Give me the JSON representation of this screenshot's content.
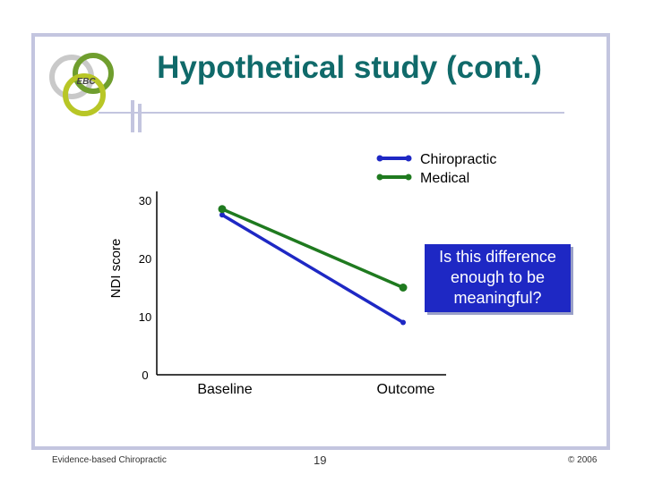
{
  "slide": {
    "title": "Hypothetical study (cont.)",
    "logo_text": "EBC",
    "footer_left": "Evidence-based Chiropractic",
    "page_number": "19",
    "footer_right": "© 2006"
  },
  "callout": {
    "text": "Is this difference enough to be meaningful?"
  },
  "colors": {
    "title": "#106a6a",
    "chiropractic": "#1e28c4",
    "medical": "#1f7a1f",
    "frame": "#c3c5df"
  },
  "chart_data": {
    "type": "line",
    "title": "",
    "xlabel": "",
    "ylabel": "NDI score",
    "categories": [
      "Baseline",
      "Outcome"
    ],
    "ylim": [
      0,
      30
    ],
    "yticks": [
      "0",
      "10",
      "20",
      "30"
    ],
    "legend_position": "top-right",
    "series": [
      {
        "name": "Chiropractic",
        "values": [
          27.5,
          9.0
        ],
        "color": "#1e28c4"
      },
      {
        "name": "Medical",
        "values": [
          28.5,
          15.0
        ],
        "color": "#1f7a1f"
      }
    ]
  }
}
